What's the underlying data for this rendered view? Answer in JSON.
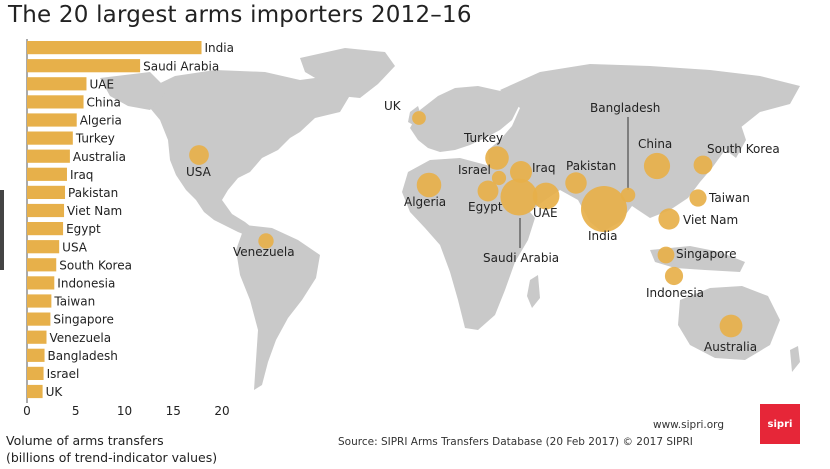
{
  "title": "The 20 largest arms importers 2012–16",
  "chart_data": {
    "type": "bar",
    "orientation": "horizontal",
    "categories": [
      "India",
      "Saudi Arabia",
      "UAE",
      "China",
      "Algeria",
      "Turkey",
      "Australia",
      "Iraq",
      "Pakistan",
      "Viet Nam",
      "Egypt",
      "USA",
      "South Korea",
      "Indonesia",
      "Taiwan",
      "Singapore",
      "Venezuela",
      "Bangladesh",
      "Israel",
      "UK"
    ],
    "values": [
      17.9,
      11.6,
      6.1,
      5.8,
      5.1,
      4.7,
      4.4,
      4.1,
      3.9,
      3.8,
      3.7,
      3.3,
      3.0,
      2.8,
      2.5,
      2.4,
      2.0,
      1.8,
      1.7,
      1.6
    ],
    "xlim": [
      0,
      20
    ],
    "xticks": [
      "0",
      "5",
      "10",
      "15",
      "20"
    ],
    "xlabel_line1": "Volume of arms transfers",
    "xlabel_line2": "(billions of trend-indicator values)",
    "bar_color": "#e7b04a",
    "grid": false
  },
  "map": {
    "land_color": "#c9c9c9",
    "bubble_color": "#e7b04a",
    "labels": [
      {
        "name": "UK",
        "value": 1.6
      },
      {
        "name": "USA",
        "value": 3.3
      },
      {
        "name": "Venezuela",
        "value": 2.0
      },
      {
        "name": "Algeria",
        "value": 5.1
      },
      {
        "name": "Turkey",
        "value": 4.7
      },
      {
        "name": "Israel",
        "value": 1.7
      },
      {
        "name": "Iraq",
        "value": 4.1
      },
      {
        "name": "Egypt",
        "value": 3.7
      },
      {
        "name": "UAE",
        "value": 6.1
      },
      {
        "name": "Saudi Arabia",
        "value": 11.6
      },
      {
        "name": "Pakistan",
        "value": 3.9
      },
      {
        "name": "India",
        "value": 17.9
      },
      {
        "name": "Bangladesh",
        "value": 1.8
      },
      {
        "name": "China",
        "value": 5.8
      },
      {
        "name": "South Korea",
        "value": 3.0
      },
      {
        "name": "Taiwan",
        "value": 2.5
      },
      {
        "name": "Viet Nam",
        "value": 3.8
      },
      {
        "name": "Singapore",
        "value": 2.4
      },
      {
        "name": "Indonesia",
        "value": 2.8
      },
      {
        "name": "Australia",
        "value": 4.4
      }
    ]
  },
  "footer": {
    "url": "www.sipri.org",
    "source": "Source: SIPRI Arms Transfers Database (20 Feb 2017)  © 2017 SIPRI",
    "logo_text": "sipri",
    "logo_color": "#e62638"
  }
}
